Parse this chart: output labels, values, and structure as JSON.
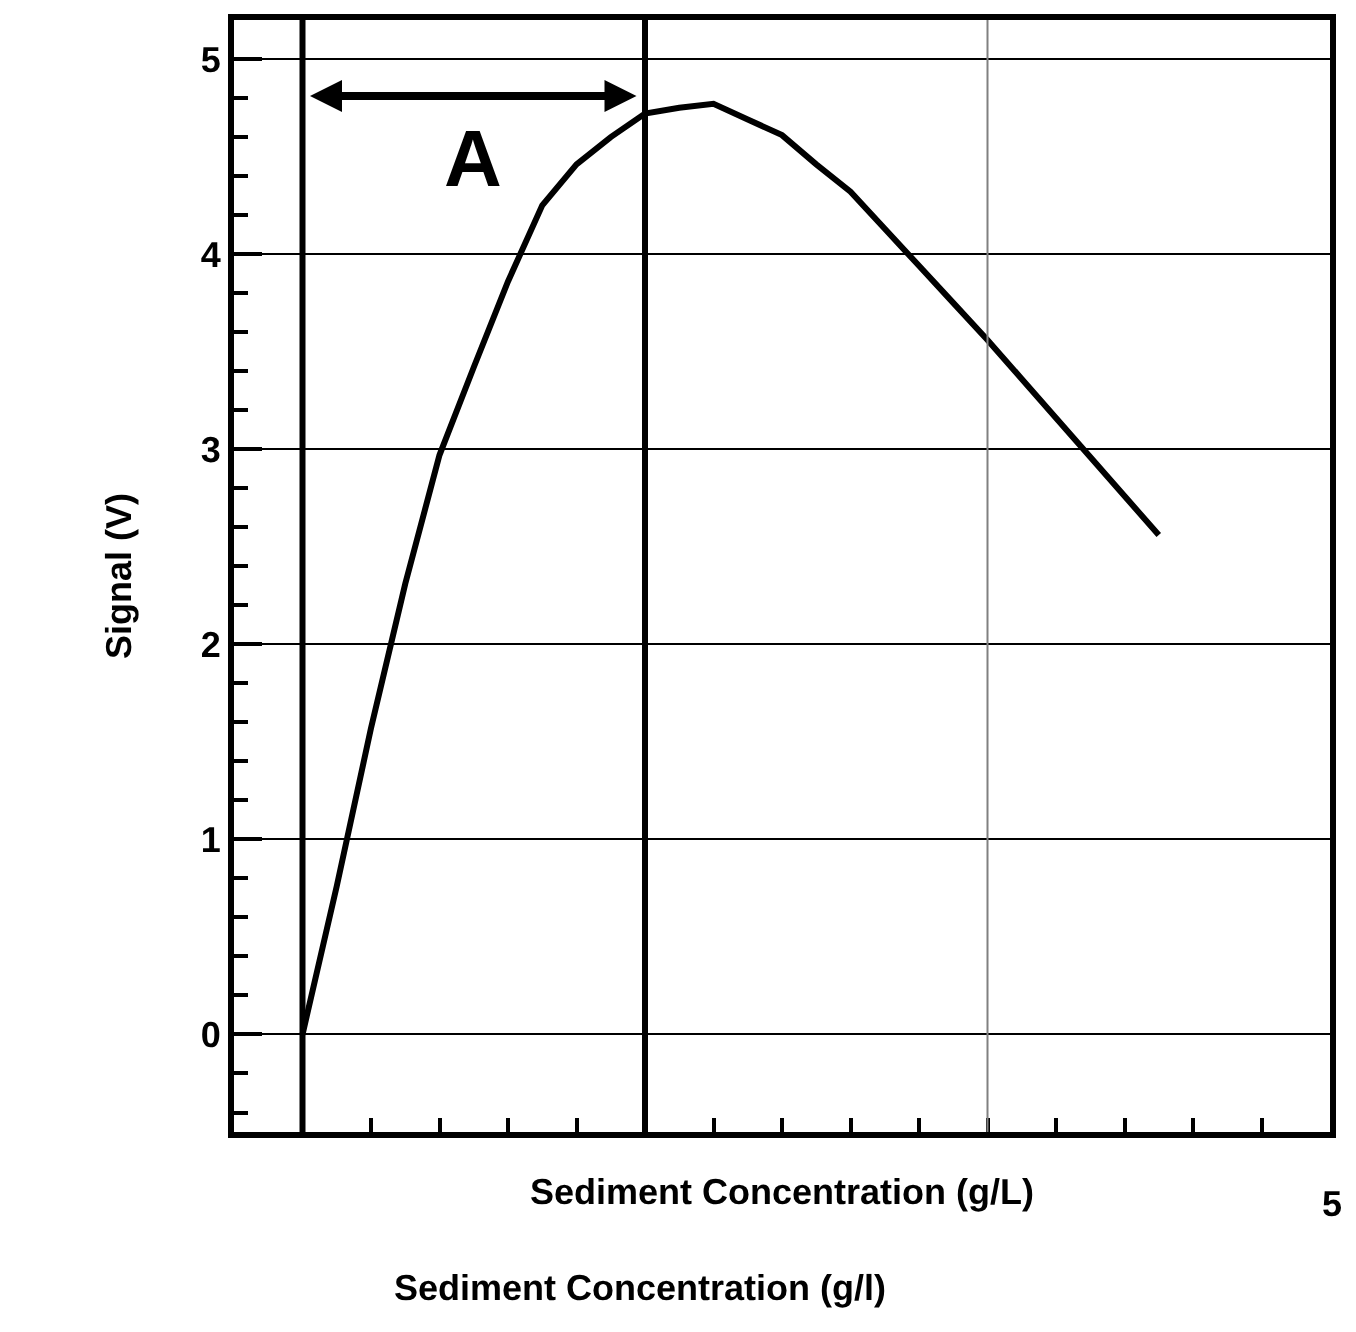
{
  "chart_data": {
    "type": "line",
    "xlabel": "Sediment Concentration (g/L)",
    "ylabel": "Signal (V)",
    "categories": [
      null,
      null,
      null,
      null,
      null,
      null,
      null,
      null,
      null,
      null,
      null,
      null,
      null,
      null,
      null,
      null,
      null,
      null,
      null,
      null,
      null,
      null,
      null,
      null,
      null,
      null,
      null,
      null,
      null,
      null,
      null,
      null,
      null
    ],
    "series": [
      {
        "color": "#000000",
        "values": [
          null,
          null,
          0,
          0.76,
          1.57,
          2.31,
          2.97,
          3.42,
          3.86,
          4.25,
          4.46,
          4.6,
          4.72,
          4.75,
          4.77,
          4.69,
          4.61,
          4.46,
          4.32,
          4.13,
          3.94,
          3.75,
          3.56,
          3.36,
          3.16,
          2.96,
          2.76,
          2.56,
          null,
          null,
          null,
          null,
          null
        ]
      }
    ],
    "ylim": [
      -0.5,
      5.2
    ],
    "yticks": [
      0,
      1,
      2,
      3,
      4,
      5
    ],
    "annotations": [
      "Sediment Concentration (g/l)",
      "5",
      "A"
    ],
    "grid": "y",
    "tick_labels": "y",
    "marker": "none",
    "line_style": "solid"
  }
}
